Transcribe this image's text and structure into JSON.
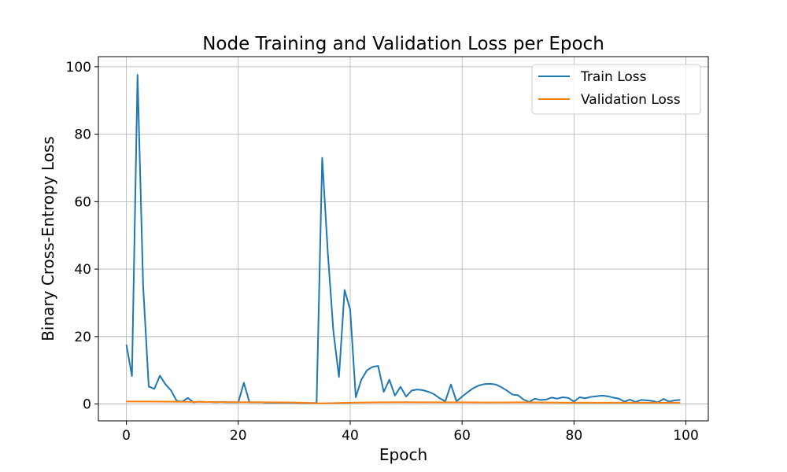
{
  "chart_data": {
    "type": "line",
    "title": "Node Training and Validation Loss per Epoch",
    "xlabel": "Epoch",
    "ylabel": "Binary Cross-Entropy Loss",
    "xlim": [
      -5,
      104
    ],
    "ylim": [
      -5,
      103
    ],
    "xticks": [
      0,
      20,
      40,
      60,
      80,
      100
    ],
    "yticks": [
      0,
      20,
      40,
      60,
      80,
      100
    ],
    "grid": true,
    "legend_position": "top-right",
    "series": [
      {
        "name": "Train Loss",
        "color": "#1f77b4",
        "x": [
          0,
          1,
          2,
          3,
          4,
          5,
          6,
          7,
          8,
          9,
          10,
          11,
          12,
          13,
          14,
          15,
          16,
          17,
          18,
          19,
          20,
          21,
          22,
          23,
          24,
          25,
          26,
          27,
          28,
          29,
          30,
          31,
          32,
          33,
          34,
          35,
          36,
          37,
          38,
          39,
          40,
          41,
          42,
          43,
          44,
          45,
          46,
          47,
          48,
          49,
          50,
          51,
          52,
          53,
          54,
          55,
          56,
          57,
          58,
          59,
          60,
          61,
          62,
          63,
          64,
          65,
          66,
          67,
          68,
          69,
          70,
          71,
          72,
          73,
          74,
          75,
          76,
          77,
          78,
          79,
          80,
          81,
          82,
          83,
          84,
          85,
          86,
          87,
          88,
          89,
          90,
          91,
          92,
          93,
          94,
          95,
          96,
          97,
          98,
          99
        ],
        "y": [
          17.6,
          8.3,
          97.6,
          35.0,
          5.2,
          4.5,
          8.4,
          5.8,
          4.0,
          0.9,
          0.7,
          1.8,
          0.5,
          0.7,
          0.6,
          0.6,
          0.5,
          0.6,
          0.5,
          0.5,
          0.5,
          6.3,
          0.5,
          0.5,
          0.5,
          0.4,
          0.4,
          0.4,
          0.4,
          0.4,
          0.4,
          0.3,
          0.3,
          0.3,
          0.3,
          73.0,
          45.0,
          21.5,
          8.0,
          33.8,
          28.0,
          2.0,
          7.2,
          10.0,
          11.0,
          11.3,
          3.6,
          7.2,
          2.5,
          5.1,
          2.2,
          4.0,
          4.3,
          4.1,
          3.6,
          2.9,
          1.7,
          0.8,
          5.8,
          0.8,
          2.2,
          3.5,
          4.7,
          5.5,
          5.9,
          6.0,
          5.8,
          5.0,
          4.0,
          2.8,
          2.6,
          1.3,
          0.6,
          1.6,
          1.2,
          1.3,
          1.9,
          1.6,
          2.0,
          1.8,
          0.7,
          2.0,
          1.7,
          2.1,
          2.3,
          2.5,
          2.3,
          1.9,
          1.6,
          0.7,
          1.3,
          0.6,
          1.2,
          1.1,
          0.9,
          0.5,
          1.5,
          0.7,
          1.1,
          1.2
        ]
      },
      {
        "name": "Validation Loss",
        "color": "#ff7f0e",
        "x": [
          0,
          5,
          10,
          15,
          20,
          25,
          30,
          35,
          40,
          45,
          50,
          55,
          60,
          65,
          70,
          75,
          80,
          85,
          90,
          95,
          99
        ],
        "y": [
          0.75,
          0.7,
          0.65,
          0.6,
          0.55,
          0.5,
          0.45,
          0.2,
          0.4,
          0.5,
          0.55,
          0.5,
          0.5,
          0.45,
          0.5,
          0.45,
          0.4,
          0.4,
          0.4,
          0.4,
          0.4
        ]
      }
    ]
  }
}
